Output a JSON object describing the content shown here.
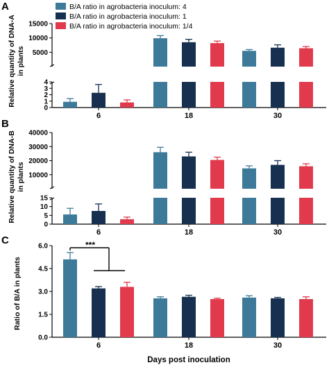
{
  "legend": {
    "entries": [
      {
        "label": "B/A ratio in agrobacteria inoculum: 4",
        "color": "#3d7a99"
      },
      {
        "label": "B/A ratio in agrobacteria inoculum: 1",
        "color": "#17304f"
      },
      {
        "label": "B/A ratio in agrobacteria inoculum: 1/4",
        "color": "#e03a4c"
      }
    ]
  },
  "panels": {
    "a": {
      "letter": "A",
      "ylabel_line1": "Relative quantity of DNA-A",
      "ylabel_line2": "in plants"
    },
    "b": {
      "letter": "B",
      "ylabel_line1": "Relative quantity of DNA-B",
      "ylabel_line2": "in plants"
    },
    "c": {
      "letter": "C",
      "ylabel": "Ratio of B/A in plants",
      "significance": "***"
    }
  },
  "xlabel": "Days post inoculation",
  "chart_data": [
    {
      "panel": "A",
      "type": "bar",
      "categories": [
        "6",
        "18",
        "30"
      ],
      "ylabel": "Relative quantity of DNA-A in plants",
      "broken_axis": true,
      "lower_ylim": [
        0,
        4
      ],
      "lower_yticks": [
        0,
        1,
        2,
        3,
        4
      ],
      "upper_ylim": [
        0,
        15000
      ],
      "upper_yticks": [
        0,
        5000,
        10000,
        15000
      ],
      "series": [
        {
          "name": "B/A ratio in agrobacteria inoculum: 4",
          "values": [
            0.9,
            9900,
            5500
          ],
          "errors": [
            0.5,
            900,
            450
          ]
        },
        {
          "name": "B/A ratio in agrobacteria inoculum: 1",
          "values": [
            2.3,
            8500,
            6600
          ],
          "errors": [
            1.3,
            1000,
            1000
          ]
        },
        {
          "name": "B/A ratio in agrobacteria inoculum: 1/4",
          "values": [
            0.8,
            8200,
            6400
          ],
          "errors": [
            0.4,
            700,
            600
          ]
        }
      ]
    },
    {
      "panel": "B",
      "type": "bar",
      "categories": [
        "6",
        "18",
        "30"
      ],
      "ylabel": "Relative quantity of DNA-B in plants",
      "broken_axis": true,
      "lower_ylim": [
        0,
        15
      ],
      "lower_yticks": [
        0,
        5,
        10,
        15
      ],
      "upper_ylim": [
        0,
        40000
      ],
      "upper_yticks": [
        0,
        10000,
        20000,
        30000,
        40000
      ],
      "series": [
        {
          "name": "B/A ratio in agrobacteria inoculum: 4",
          "values": [
            5.5,
            26000,
            14500
          ],
          "errors": [
            3.5,
            3500,
            1800
          ]
        },
        {
          "name": "B/A ratio in agrobacteria inoculum: 1",
          "values": [
            7.5,
            23000,
            17000
          ],
          "errors": [
            4.0,
            3000,
            3000
          ]
        },
        {
          "name": "B/A ratio in agrobacteria inoculum: 1/4",
          "values": [
            2.8,
            20500,
            16000
          ],
          "errors": [
            1.2,
            2000,
            1800
          ]
        }
      ]
    },
    {
      "panel": "C",
      "type": "bar",
      "categories": [
        "6",
        "18",
        "30"
      ],
      "ylabel": "Ratio of B/A in plants",
      "xlabel": "Days post inoculation",
      "ylim": [
        0,
        6
      ],
      "yticks": [
        0.0,
        1.5,
        3.0,
        4.5,
        6.0
      ],
      "yticklabels": [
        "0.0",
        "1.5",
        "3.0",
        "4.5",
        "6.0"
      ],
      "annotation": "***",
      "series": [
        {
          "name": "B/A ratio in agrobacteria inoculum: 4",
          "values": [
            5.1,
            2.55,
            2.6
          ],
          "errors": [
            0.45,
            0.1,
            0.12
          ]
        },
        {
          "name": "B/A ratio in agrobacteria inoculum: 1",
          "values": [
            3.2,
            2.65,
            2.55
          ],
          "errors": [
            0.12,
            0.1,
            0.06
          ]
        },
        {
          "name": "B/A ratio in agrobacteria inoculum: 1/4",
          "values": [
            3.3,
            2.5,
            2.5
          ],
          "errors": [
            0.3,
            0.06,
            0.15
          ]
        }
      ]
    }
  ]
}
